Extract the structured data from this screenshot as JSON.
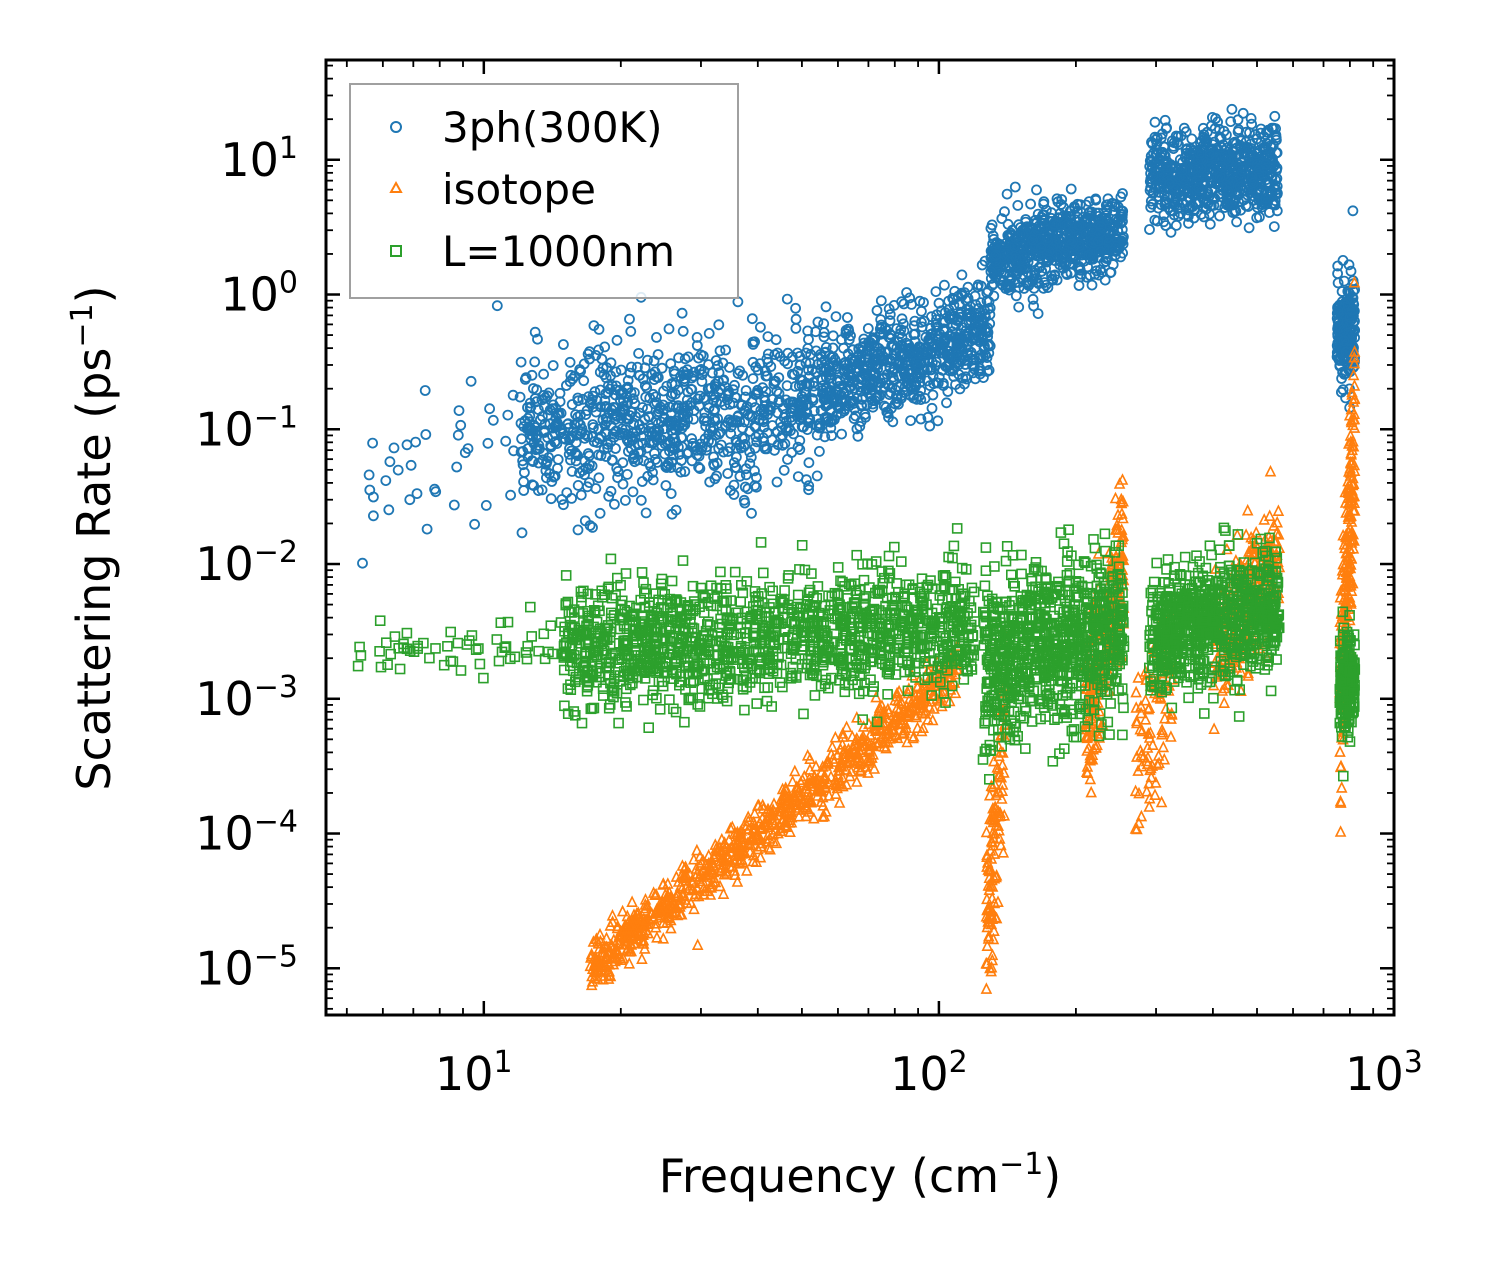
{
  "chart_data": {
    "type": "scatter",
    "title": "",
    "xlabel": "Frequency (cm",
    "xlabel_sup": "−1",
    "xlabel_close": ")",
    "ylabel": "Scattering Rate (ps",
    "ylabel_sup": "−1",
    "ylabel_close": ")",
    "xscale": "log",
    "yscale": "log",
    "xlim": [
      4.5,
      1000
    ],
    "ylim": [
      4.5e-06,
      55
    ],
    "x_ticks": [
      {
        "value": 10,
        "base": "10",
        "exp": "1"
      },
      {
        "value": 100,
        "base": "10",
        "exp": "2"
      },
      {
        "value": 1000,
        "base": "10",
        "exp": "3"
      }
    ],
    "y_ticks": [
      {
        "value": 1e-05,
        "base": "10",
        "exp": "−5"
      },
      {
        "value": 0.0001,
        "base": "10",
        "exp": "−4"
      },
      {
        "value": 0.001,
        "base": "10",
        "exp": "−3"
      },
      {
        "value": 0.01,
        "base": "10",
        "exp": "−2"
      },
      {
        "value": 0.1,
        "base": "10",
        "exp": "−1"
      },
      {
        "value": 1,
        "base": "10",
        "exp": "0"
      },
      {
        "value": 10,
        "base": "10",
        "exp": "1"
      }
    ],
    "legend_position": "top-left",
    "series": [
      {
        "name": "3ph(300K)",
        "marker": "circle",
        "color": "#1f77b4",
        "bands": [
          {
            "x": [
              5.2,
              12.0
            ],
            "y_center": [
              0.05,
              0.08
            ],
            "y_spread": 0.35,
            "count": 40
          },
          {
            "x": [
              12.0,
              55.0
            ],
            "y_center": [
              0.09,
              0.15
            ],
            "y_spread": 0.28,
            "count": 900
          },
          {
            "x": [
              55.0,
              130.0
            ],
            "y_center": [
              0.2,
              0.55
            ],
            "y_spread": 0.2,
            "count": 700
          },
          {
            "x": [
              130.0,
              255.0
            ],
            "y_center": [
              1.8,
              3.0
            ],
            "y_spread": 0.14,
            "count": 700
          },
          {
            "x": [
              290.0,
              555.0
            ],
            "y_center": [
              7.0,
              9.0
            ],
            "y_spread": 0.16,
            "count": 700
          },
          {
            "x": [
              750.0,
              820.0
            ],
            "y_center": [
              0.45,
              0.6
            ],
            "y_spread": 0.2,
            "count": 200
          }
        ]
      },
      {
        "name": "isotope",
        "marker": "triangle",
        "color": "#ff7f0e",
        "bands": [
          {
            "x": [
              17.0,
              110.0
            ],
            "y_center": [
              1e-05,
              0.0016
            ],
            "y_spread": 0.1,
            "count": 900
          },
          {
            "x": [
              127.0,
              140.0
            ],
            "y_center": [
              2e-05,
              0.0006
            ],
            "y_spread": 0.35,
            "count": 120
          },
          {
            "x": [
              210.0,
              255.0
            ],
            "y_center": [
              0.0006,
              0.012
            ],
            "y_spread": 0.3,
            "count": 220
          },
          {
            "x": [
              270.0,
              330.0
            ],
            "y_center": [
              0.0003,
              0.002
            ],
            "y_spread": 0.3,
            "count": 100
          },
          {
            "x": [
              400.0,
              560.0
            ],
            "y_center": [
              0.002,
              0.012
            ],
            "y_spread": 0.25,
            "count": 250
          },
          {
            "x": [
              760.0,
              820.0
            ],
            "y_center": [
              0.001,
              0.08
            ],
            "y_spread": 0.45,
            "count": 220
          }
        ]
      },
      {
        "name": "L=1000nm",
        "marker": "square",
        "color": "#2ca02c",
        "bands": [
          {
            "x": [
              5.2,
              15.0
            ],
            "y_center": [
              0.0022,
              0.0024
            ],
            "y_spread": 0.08,
            "count": 60
          },
          {
            "x": [
              15.0,
              120.0
            ],
            "y_center": [
              0.0024,
              0.0035
            ],
            "y_spread": 0.22,
            "count": 1400
          },
          {
            "x": [
              125.0,
              255.0
            ],
            "y_center": [
              0.002,
              0.003
            ],
            "y_spread": 0.3,
            "count": 900
          },
          {
            "x": [
              290.0,
              560.0
            ],
            "y_center": [
              0.003,
              0.0045
            ],
            "y_spread": 0.22,
            "count": 800
          },
          {
            "x": [
              760.0,
              820.0
            ],
            "y_center": [
              0.0012,
              0.0015
            ],
            "y_spread": 0.2,
            "count": 200
          }
        ]
      }
    ]
  }
}
